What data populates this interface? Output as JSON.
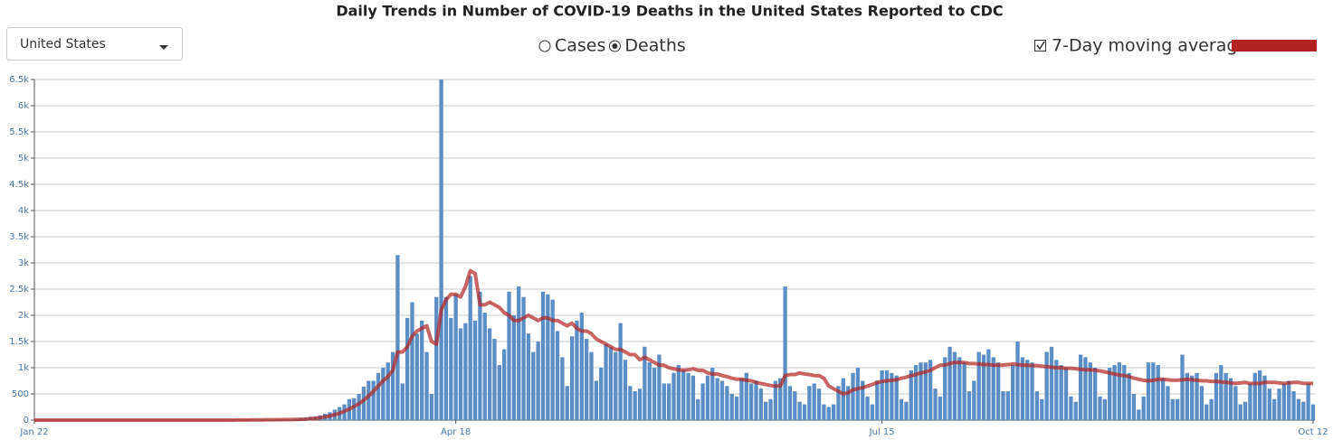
{
  "chart_data": {
    "type": "bar",
    "title": "Daily Trends in Number of COVID-19 Deaths in the United States Reported to CDC",
    "dropdown": "United States",
    "modes": [
      "Cases",
      "Deaths"
    ],
    "selected_mode": 1,
    "categories": [
      "Jan 22",
      null,
      null,
      null,
      null,
      null,
      null,
      null,
      null,
      null,
      null,
      null,
      null,
      null,
      null,
      null,
      null,
      null,
      null,
      null,
      null,
      null,
      null,
      null,
      null,
      null,
      null,
      null,
      null,
      null,
      null,
      null,
      null,
      null,
      null,
      null,
      null,
      null,
      null,
      null,
      null,
      null,
      null,
      null,
      null,
      null,
      null,
      null,
      null,
      null,
      null,
      null,
      null,
      null,
      null,
      null,
      null,
      null,
      null,
      null,
      null,
      null,
      null,
      null,
      null,
      null,
      null,
      null,
      null,
      null,
      null,
      null,
      null,
      null,
      null,
      null,
      null,
      null,
      null,
      null,
      null,
      null,
      null,
      null,
      null,
      null,
      null,
      "Apr 18",
      null,
      null,
      null,
      null,
      null,
      null,
      null,
      null,
      null,
      null,
      null,
      null,
      null,
      null,
      null,
      null,
      null,
      null,
      null,
      null,
      null,
      null,
      null,
      null,
      null,
      null,
      null,
      null,
      null,
      null,
      null,
      null,
      null,
      null,
      null,
      null,
      null,
      null,
      null,
      null,
      null,
      null,
      null,
      null,
      null,
      null,
      null,
      null,
      null,
      null,
      null,
      null,
      null,
      null,
      null,
      null,
      null,
      null,
      null,
      null,
      null,
      null,
      null,
      null,
      null,
      null,
      null,
      null,
      null,
      null,
      null,
      null,
      null,
      null,
      null,
      null,
      null,
      null,
      null,
      null,
      null,
      null,
      null,
      null,
      null,
      null,
      null,
      "Jul 15",
      null,
      null,
      null,
      null,
      null,
      null,
      null,
      null,
      null,
      null,
      null,
      null,
      null,
      null,
      null,
      null,
      null,
      null,
      null,
      null,
      null,
      null,
      null,
      null,
      null,
      null,
      null,
      null,
      null,
      null,
      null,
      null,
      null,
      null,
      null,
      null,
      null,
      null,
      null,
      null,
      null,
      null,
      null,
      null,
      null,
      null,
      null,
      null,
      null,
      null,
      null,
      null,
      null,
      null,
      null,
      null,
      null,
      null,
      null,
      null,
      null,
      null,
      null,
      null,
      null,
      null,
      null,
      null,
      null,
      null,
      null,
      null,
      null,
      null,
      null,
      null,
      null,
      null,
      null,
      null,
      null,
      null,
      null,
      null,
      null,
      null,
      null,
      null,
      "Oct 12"
    ],
    "series": [
      {
        "color": "#5b8ec4",
        "values": [
          0,
          0,
          0,
          0,
          0,
          0,
          0,
          0,
          0,
          0,
          0,
          0,
          0,
          0,
          0,
          0,
          0,
          0,
          0,
          0,
          0,
          0,
          0,
          0,
          0,
          0,
          0,
          0,
          0,
          0,
          0,
          0,
          0,
          0,
          0,
          0,
          0,
          0,
          0,
          1,
          1,
          2,
          3,
          4,
          5,
          6,
          8,
          4,
          7,
          8,
          10,
          12,
          15,
          10,
          20,
          30,
          40,
          60,
          70,
          90,
          120,
          150,
          200,
          250,
          300,
          400,
          420,
          500,
          640,
          750,
          750,
          900,
          1000,
          1100,
          1300,
          3150,
          700,
          1950,
          2250,
          1650,
          1900,
          1300,
          500,
          2350,
          6500,
          2350,
          1950,
          2400,
          1750,
          1850,
          2750,
          1900,
          2450,
          2050,
          1750,
          1550,
          1050,
          1350,
          2450,
          2000,
          2550,
          2350,
          1650,
          1300,
          1500,
          2450,
          2400,
          2300,
          1700,
          1200,
          650,
          1600,
          1900,
          2050,
          1550,
          1300,
          750,
          1000,
          1450,
          1400,
          1300,
          1850,
          1150,
          650,
          550,
          600,
          1400,
          1100,
          1000,
          1250,
          700,
          700,
          900,
          1050,
          950,
          900,
          850,
          400,
          700,
          850,
          1000,
          800,
          750,
          650,
          500,
          450,
          800,
          900,
          700,
          750,
          600,
          350,
          400,
          750,
          800,
          2550,
          650,
          550,
          350,
          300,
          650,
          700,
          600,
          300,
          250,
          300,
          650,
          800,
          650,
          900,
          1000,
          750,
          450,
          300,
          750,
          950,
          950,
          900,
          850,
          400,
          350,
          950,
          1050,
          1100,
          1100,
          1150,
          600,
          450,
          1200,
          1400,
          1300,
          1200,
          1100,
          550,
          750,
          1300,
          1250,
          1350,
          1200,
          1100,
          550,
          550,
          1050,
          1500,
          1200,
          1150,
          1100,
          550,
          400,
          1300,
          1400,
          1150,
          1050,
          1000,
          450,
          350,
          1250,
          1200,
          1100,
          1000,
          450,
          400,
          1000,
          1050,
          1100,
          1050,
          900,
          500,
          200,
          450,
          1100,
          1100,
          1050,
          800,
          650,
          400,
          400,
          1250,
          900,
          850,
          900,
          650,
          300,
          400,
          900,
          1050,
          900,
          800,
          650,
          300,
          350,
          700,
          900,
          950,
          850,
          600,
          400,
          600,
          700,
          750,
          550,
          400,
          350,
          700,
          300
        ]
      },
      {
        "name": "7-Day moving average",
        "color": "#b22222",
        "checked": true,
        "values": [
          0,
          0,
          0,
          0,
          0,
          0,
          0,
          0,
          0,
          0,
          0,
          0,
          0,
          0,
          0,
          0,
          0,
          0,
          0,
          0,
          0,
          0,
          0,
          0,
          0,
          0,
          0,
          0,
          0,
          0,
          0,
          0,
          0,
          0,
          0,
          0,
          0,
          0,
          0,
          1,
          1,
          1,
          2,
          2,
          3,
          4,
          5,
          5,
          6,
          7,
          8,
          9,
          10,
          11,
          13,
          16,
          20,
          27,
          35,
          47,
          62,
          80,
          105,
          130,
          170,
          210,
          260,
          310,
          380,
          460,
          550,
          650,
          750,
          830,
          950,
          1300,
          1300,
          1400,
          1600,
          1700,
          1750,
          1800,
          1500,
          1450,
          2100,
          2300,
          2400,
          2400,
          2350,
          2550,
          2850,
          2800,
          2200,
          2200,
          2250,
          2200,
          2150,
          2050,
          2000,
          1900,
          1900,
          1950,
          2000,
          1950,
          1900,
          1950,
          1950,
          1900,
          1900,
          1850,
          1800,
          1850,
          1750,
          1700,
          1700,
          1650,
          1550,
          1500,
          1450,
          1400,
          1350,
          1350,
          1300,
          1250,
          1250,
          1150,
          1200,
          1150,
          1100,
          1050,
          1050,
          1000,
          980,
          960,
          950,
          960,
          980,
          950,
          950,
          900,
          880,
          880,
          850,
          830,
          800,
          780,
          780,
          760,
          750,
          720,
          700,
          680,
          660,
          650,
          650,
          850,
          870,
          870,
          900,
          880,
          870,
          850,
          850,
          800,
          650,
          600,
          550,
          500,
          520,
          580,
          600,
          620,
          650,
          680,
          720,
          740,
          750,
          760,
          770,
          800,
          820,
          850,
          870,
          900,
          920,
          950,
          1000,
          1050,
          1050,
          1080,
          1100,
          1100,
          1100,
          1080,
          1080,
          1070,
          1060,
          1060,
          1050,
          1050,
          1050,
          1060,
          1070,
          1060,
          1050,
          1050,
          1040,
          1040,
          1030,
          1020,
          1010,
          1000,
          1000,
          990,
          990,
          980,
          970,
          960,
          960,
          950,
          940,
          920,
          900,
          880,
          860,
          850,
          830,
          800,
          780,
          760,
          750,
          760,
          780,
          780,
          770,
          760,
          760,
          770,
          780,
          770,
          760,
          750,
          750,
          740,
          740,
          730,
          720,
          710,
          700,
          710,
          720,
          700,
          700,
          700,
          720,
          720,
          720,
          710,
          700,
          710,
          720,
          720,
          700,
          700,
          700
        ]
      }
    ],
    "ylim": [
      0,
      6500
    ],
    "yticks": [
      0,
      500,
      {
        "value": 1000,
        "label": "1k"
      },
      {
        "value": 1500,
        "label": "1.5k"
      },
      {
        "value": 2000,
        "label": "2k"
      },
      {
        "value": 2500,
        "label": "2.5k"
      },
      {
        "value": 3000,
        "label": "3k"
      },
      {
        "value": 3500,
        "label": "3.5k"
      },
      {
        "value": 4000,
        "label": "4k"
      },
      {
        "value": 4500,
        "label": "4.5k"
      },
      {
        "value": 5000,
        "label": "5k"
      },
      {
        "value": 5500,
        "label": "5.5k"
      },
      {
        "value": 6000,
        "label": "6k"
      },
      {
        "value": 6500,
        "label": "6.5k"
      }
    ],
    "grid": true
  }
}
